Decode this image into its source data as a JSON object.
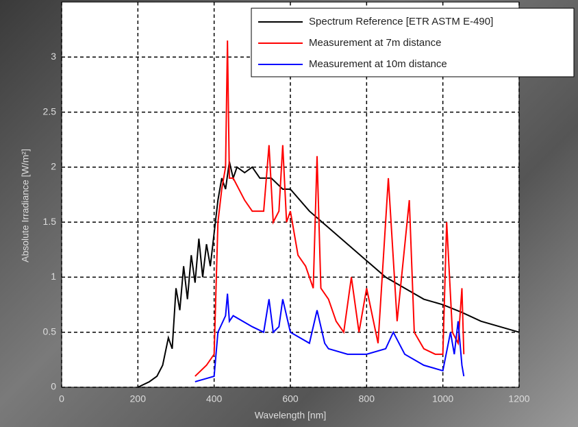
{
  "chart_data": {
    "type": "line",
    "xlabel": "Wavelength [nm]",
    "ylabel": "Absolute Irradiance [W/m²]",
    "xlim": [
      0,
      1200
    ],
    "xticks": [
      0,
      200,
      400,
      600,
      800,
      1000,
      1200
    ],
    "ylim": [
      0,
      3.5
    ],
    "yticks": [
      0,
      0.5,
      1,
      1.5,
      2,
      2.5,
      3
    ],
    "grid": true,
    "legend": "upper right",
    "series": [
      {
        "name": "Spectrum Reference [ETR ASTM E-490]",
        "color": "#000000",
        "x": [
          200,
          230,
          250,
          265,
          280,
          290,
          300,
          310,
          320,
          330,
          340,
          350,
          360,
          370,
          380,
          390,
          400,
          410,
          420,
          430,
          440,
          450,
          460,
          480,
          500,
          520,
          550,
          580,
          600,
          650,
          700,
          750,
          800,
          850,
          900,
          950,
          1000,
          1050,
          1100,
          1150,
          1200
        ],
        "values": [
          0,
          0.05,
          0.1,
          0.2,
          0.45,
          0.35,
          0.9,
          0.7,
          1.1,
          0.8,
          1.2,
          0.95,
          1.35,
          1.0,
          1.3,
          1.1,
          1.4,
          1.7,
          1.9,
          1.8,
          2.05,
          1.9,
          2.0,
          1.95,
          2.0,
          1.9,
          1.9,
          1.8,
          1.8,
          1.6,
          1.45,
          1.3,
          1.15,
          1.0,
          0.9,
          0.8,
          0.75,
          0.68,
          0.6,
          0.55,
          0.5
        ]
      },
      {
        "name": "Measurement at 7m distance",
        "color": "#ff0000",
        "x": [
          350,
          380,
          400,
          410,
          420,
          430,
          435,
          440,
          450,
          480,
          500,
          530,
          544,
          555,
          570,
          580,
          590,
          600,
          620,
          640,
          660,
          670,
          680,
          700,
          720,
          740,
          760,
          780,
          800,
          830,
          857,
          880,
          912,
          925,
          950,
          980,
          1000,
          1010,
          1025,
          1040,
          1050,
          1055
        ],
        "values": [
          0.1,
          0.2,
          0.3,
          1.5,
          1.8,
          2.0,
          3.15,
          1.9,
          1.9,
          1.7,
          1.6,
          1.6,
          2.2,
          1.5,
          1.6,
          2.2,
          1.5,
          1.6,
          1.2,
          1.1,
          0.9,
          2.1,
          0.9,
          0.8,
          0.6,
          0.5,
          1.0,
          0.5,
          0.9,
          0.4,
          1.9,
          0.6,
          1.7,
          0.5,
          0.35,
          0.3,
          0.3,
          1.5,
          0.5,
          0.4,
          0.9,
          0.3
        ]
      },
      {
        "name": "Measurement at 10m distance",
        "color": "#0000ff",
        "x": [
          350,
          380,
          400,
          410,
          430,
          435,
          440,
          450,
          500,
          530,
          544,
          555,
          570,
          580,
          600,
          650,
          670,
          690,
          700,
          750,
          800,
          850,
          870,
          900,
          950,
          1000,
          1020,
          1030,
          1040,
          1050,
          1055
        ],
        "values": [
          0.05,
          0.08,
          0.1,
          0.5,
          0.65,
          0.85,
          0.6,
          0.65,
          0.55,
          0.5,
          0.8,
          0.5,
          0.55,
          0.8,
          0.5,
          0.4,
          0.7,
          0.4,
          0.35,
          0.3,
          0.3,
          0.35,
          0.5,
          0.3,
          0.2,
          0.15,
          0.5,
          0.3,
          0.6,
          0.2,
          0.1
        ]
      }
    ]
  }
}
